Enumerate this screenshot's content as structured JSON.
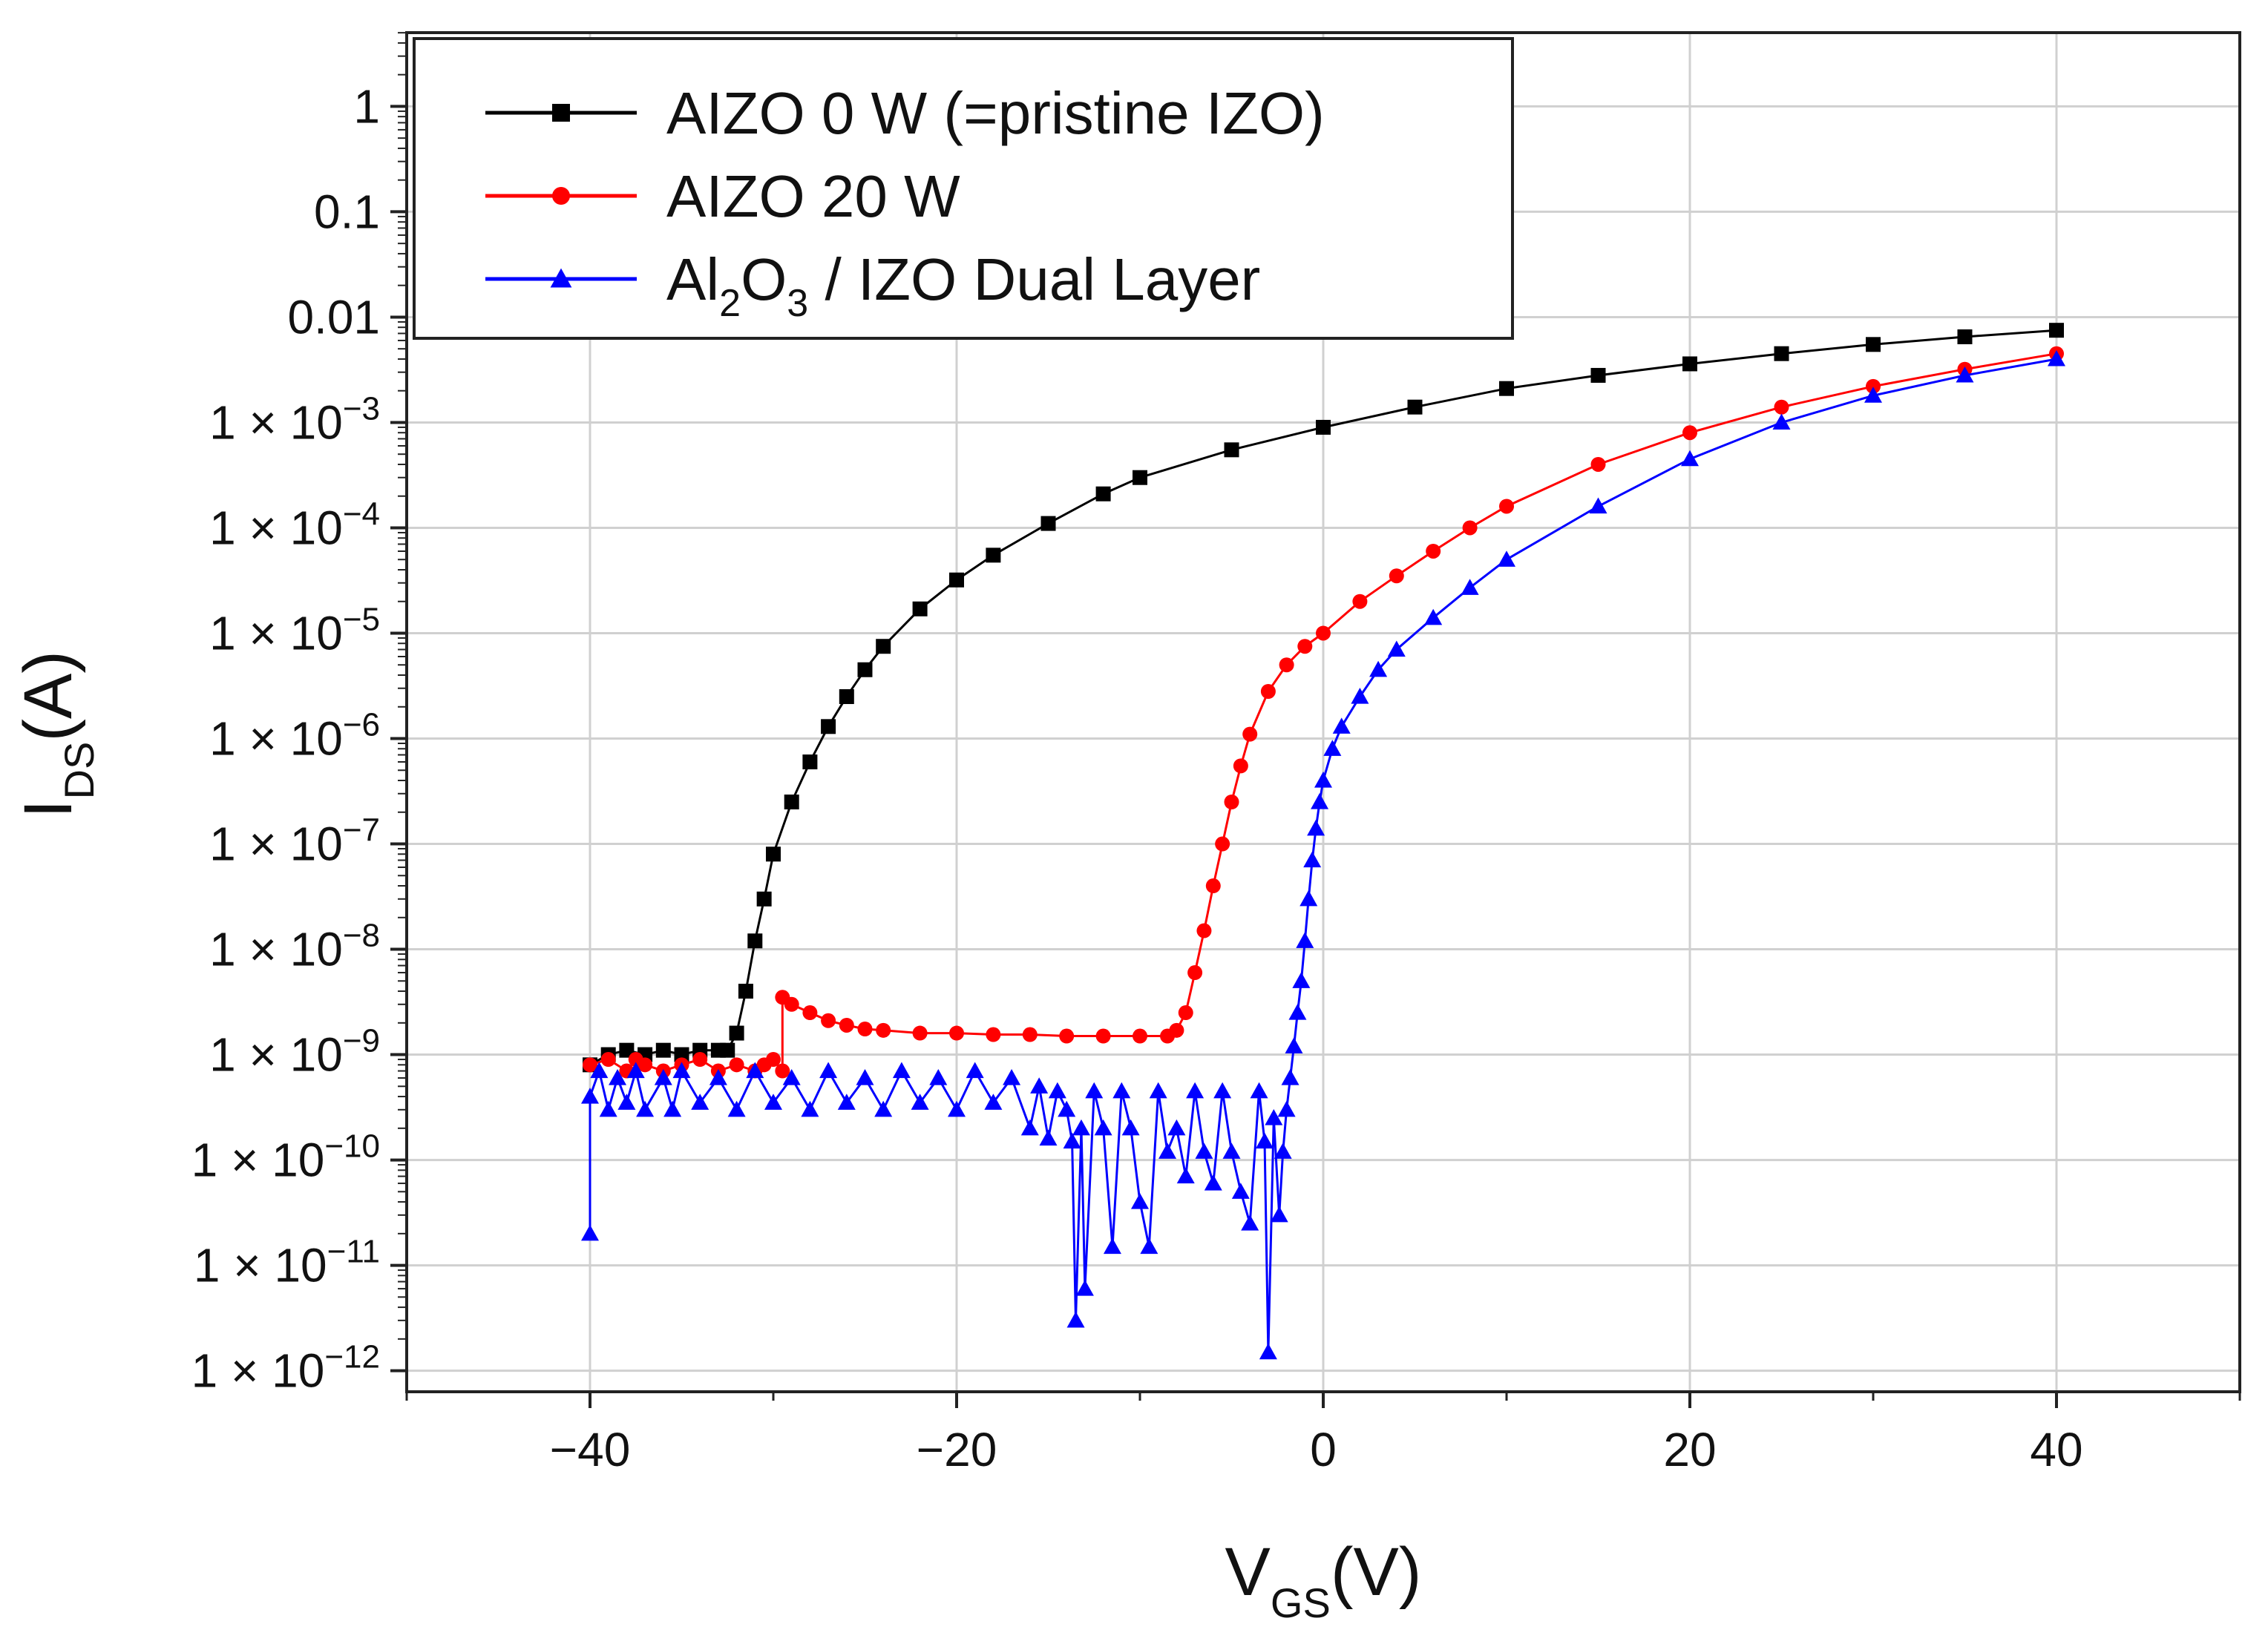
{
  "chart_data": {
    "type": "scatter",
    "title": "",
    "xlabel": "V_GS(V)",
    "ylabel": "I_DS(A)",
    "xlabel_parts": {
      "main": "V",
      "sub": "GS",
      "tail": "(V)"
    },
    "ylabel_parts": {
      "main": "I",
      "sub": "DS",
      "tail": "(A)"
    },
    "xlim": [
      -50,
      50
    ],
    "ylim_log10": [
      -12.2,
      0.7
    ],
    "yscale": "log",
    "grid": true,
    "legend_position": "top-left",
    "x_ticks": [
      {
        "value": -40,
        "label": "−40"
      },
      {
        "value": -20,
        "label": "−20"
      },
      {
        "value": 0,
        "label": "0"
      },
      {
        "value": 20,
        "label": "20"
      },
      {
        "value": 40,
        "label": "40"
      }
    ],
    "y_ticks": [
      {
        "exp": 0,
        "label": "1"
      },
      {
        "exp": -1,
        "label": "0.1"
      },
      {
        "exp": -2,
        "label": "0.01"
      },
      {
        "exp": -3,
        "base": "1 × 10",
        "power": "−3"
      },
      {
        "exp": -4,
        "base": "1 × 10",
        "power": "−4"
      },
      {
        "exp": -5,
        "base": "1 × 10",
        "power": "−5"
      },
      {
        "exp": -6,
        "base": "1 × 10",
        "power": "−6"
      },
      {
        "exp": -7,
        "base": "1 × 10",
        "power": "−7"
      },
      {
        "exp": -8,
        "base": "1 × 10",
        "power": "−8"
      },
      {
        "exp": -9,
        "base": "1 × 10",
        "power": "−9"
      },
      {
        "exp": -10,
        "base": "1 × 10",
        "power": "−10"
      },
      {
        "exp": -11,
        "base": "1 × 10",
        "power": "−11"
      },
      {
        "exp": -12,
        "base": "1 × 10",
        "power": "−12"
      }
    ],
    "series": [
      {
        "name": "AIZO 0 W (=pristine IZO)",
        "label_parts": [
          {
            "t": "AIZO 0 W (=pristine IZO)"
          }
        ],
        "color": "#000000",
        "marker": "square",
        "points": [
          [
            -40,
            8e-10
          ],
          [
            -39,
            1e-09
          ],
          [
            -38,
            1.1e-09
          ],
          [
            -37,
            1e-09
          ],
          [
            -36,
            1.1e-09
          ],
          [
            -35,
            1e-09
          ],
          [
            -34,
            1.1e-09
          ],
          [
            -33,
            1.1e-09
          ],
          [
            -32.5,
            1.1e-09
          ],
          [
            -32,
            1.6e-09
          ],
          [
            -31.5,
            4e-09
          ],
          [
            -31,
            1.2e-08
          ],
          [
            -30.5,
            3e-08
          ],
          [
            -30,
            8e-08
          ],
          [
            -29,
            2.5e-07
          ],
          [
            -28,
            6e-07
          ],
          [
            -27,
            1.3e-06
          ],
          [
            -26,
            2.5e-06
          ],
          [
            -25,
            4.5e-06
          ],
          [
            -24,
            7.5e-06
          ],
          [
            -22,
            1.7e-05
          ],
          [
            -20,
            3.2e-05
          ],
          [
            -18,
            5.5e-05
          ],
          [
            -15,
            0.00011
          ],
          [
            -12,
            0.00021
          ],
          [
            -10,
            0.0003
          ],
          [
            -5,
            0.00055
          ],
          [
            0,
            0.0009
          ],
          [
            5,
            0.0014
          ],
          [
            10,
            0.0021
          ],
          [
            15,
            0.0028
          ],
          [
            20,
            0.0036
          ],
          [
            25,
            0.0045
          ],
          [
            30,
            0.0055
          ],
          [
            35,
            0.0065
          ],
          [
            40,
            0.0075
          ]
        ]
      },
      {
        "name": "AIZO 20 W",
        "label_parts": [
          {
            "t": "AIZO 20 W"
          }
        ],
        "color": "#ff0000",
        "marker": "circle",
        "points": [
          [
            -40,
            8e-10
          ],
          [
            -39,
            9e-10
          ],
          [
            -38,
            7e-10
          ],
          [
            -37.5,
            9e-10
          ],
          [
            -37,
            8e-10
          ],
          [
            -36,
            7e-10
          ],
          [
            -35,
            8e-10
          ],
          [
            -34,
            9e-10
          ],
          [
            -33,
            7e-10
          ],
          [
            -32,
            8e-10
          ],
          [
            -31,
            7e-10
          ],
          [
            -30.5,
            8e-10
          ],
          [
            -30,
            9e-10
          ],
          [
            -29.5,
            7e-10
          ],
          [
            -29.5,
            3.5e-09
          ],
          [
            -29,
            3e-09
          ],
          [
            -28,
            2.5e-09
          ],
          [
            -27,
            2.1e-09
          ],
          [
            -26,
            1.9e-09
          ],
          [
            -25,
            1.75e-09
          ],
          [
            -24,
            1.7e-09
          ],
          [
            -22,
            1.6e-09
          ],
          [
            -20,
            1.6e-09
          ],
          [
            -18,
            1.55e-09
          ],
          [
            -16,
            1.55e-09
          ],
          [
            -14,
            1.5e-09
          ],
          [
            -12,
            1.5e-09
          ],
          [
            -10,
            1.5e-09
          ],
          [
            -8.5,
            1.5e-09
          ],
          [
            -8,
            1.7e-09
          ],
          [
            -7.5,
            2.5e-09
          ],
          [
            -7,
            6e-09
          ],
          [
            -6.5,
            1.5e-08
          ],
          [
            -6,
            4e-08
          ],
          [
            -5.5,
            1e-07
          ],
          [
            -5,
            2.5e-07
          ],
          [
            -4.5,
            5.5e-07
          ],
          [
            -4,
            1.1e-06
          ],
          [
            -3,
            2.8e-06
          ],
          [
            -2,
            5e-06
          ],
          [
            -1,
            7.5e-06
          ],
          [
            0,
            1e-05
          ],
          [
            2,
            2e-05
          ],
          [
            4,
            3.5e-05
          ],
          [
            6,
            6e-05
          ],
          [
            8,
            0.0001
          ],
          [
            10,
            0.00016
          ],
          [
            15,
            0.0004
          ],
          [
            20,
            0.0008
          ],
          [
            25,
            0.0014
          ],
          [
            30,
            0.0022
          ],
          [
            35,
            0.0032
          ],
          [
            40,
            0.0045
          ]
        ]
      },
      {
        "name": "Al2O3 / IZO Dual Layer",
        "label_parts": [
          {
            "t": "Al"
          },
          {
            "t": "2",
            "sub": true
          },
          {
            "t": "O"
          },
          {
            "t": "3",
            "sub": true
          },
          {
            "t": " / IZO Dual Layer"
          }
        ],
        "color": "#0000ff",
        "marker": "triangle",
        "points": [
          [
            -40,
            2e-11
          ],
          [
            -40,
            4e-10
          ],
          [
            -39.5,
            7e-10
          ],
          [
            -39,
            3e-10
          ],
          [
            -38.5,
            6e-10
          ],
          [
            -38,
            3.5e-10
          ],
          [
            -37.5,
            7e-10
          ],
          [
            -37,
            3e-10
          ],
          [
            -36,
            6e-10
          ],
          [
            -35.5,
            3e-10
          ],
          [
            -35,
            7e-10
          ],
          [
            -34,
            3.5e-10
          ],
          [
            -33,
            6e-10
          ],
          [
            -32,
            3e-10
          ],
          [
            -31,
            7e-10
          ],
          [
            -30,
            3.5e-10
          ],
          [
            -29,
            6e-10
          ],
          [
            -28,
            3e-10
          ],
          [
            -27,
            7e-10
          ],
          [
            -26,
            3.5e-10
          ],
          [
            -25,
            6e-10
          ],
          [
            -24,
            3e-10
          ],
          [
            -23,
            7e-10
          ],
          [
            -22,
            3.5e-10
          ],
          [
            -21,
            6e-10
          ],
          [
            -20,
            3e-10
          ],
          [
            -19,
            7e-10
          ],
          [
            -18,
            3.5e-10
          ],
          [
            -17,
            6e-10
          ],
          [
            -16,
            2e-10
          ],
          [
            -15.5,
            5e-10
          ],
          [
            -15,
            1.6e-10
          ],
          [
            -14.5,
            4.5e-10
          ],
          [
            -14,
            3e-10
          ],
          [
            -13.7,
            1.5e-10
          ],
          [
            -13.5,
            3e-12
          ],
          [
            -13.2,
            2e-10
          ],
          [
            -13,
            6e-12
          ],
          [
            -12.5,
            4.5e-10
          ],
          [
            -12,
            2e-10
          ],
          [
            -11.5,
            1.5e-11
          ],
          [
            -11,
            4.5e-10
          ],
          [
            -10.5,
            2e-10
          ],
          [
            -10,
            4e-11
          ],
          [
            -9.5,
            1.5e-11
          ],
          [
            -9,
            4.5e-10
          ],
          [
            -8.5,
            1.2e-10
          ],
          [
            -8,
            2e-10
          ],
          [
            -7.5,
            7e-11
          ],
          [
            -7,
            4.5e-10
          ],
          [
            -6.5,
            1.2e-10
          ],
          [
            -6,
            6e-11
          ],
          [
            -5.5,
            4.5e-10
          ],
          [
            -5,
            1.2e-10
          ],
          [
            -4.5,
            5e-11
          ],
          [
            -4,
            2.5e-11
          ],
          [
            -3.5,
            4.5e-10
          ],
          [
            -3.2,
            1.5e-10
          ],
          [
            -3,
            1.5e-12
          ],
          [
            -2.7,
            2.5e-10
          ],
          [
            -2.4,
            3e-11
          ],
          [
            -2.2,
            1.2e-10
          ],
          [
            -2,
            3e-10
          ],
          [
            -1.8,
            6e-10
          ],
          [
            -1.6,
            1.2e-09
          ],
          [
            -1.4,
            2.5e-09
          ],
          [
            -1.2,
            5e-09
          ],
          [
            -1,
            1.2e-08
          ],
          [
            -0.8,
            3e-08
          ],
          [
            -0.6,
            7e-08
          ],
          [
            -0.4,
            1.4e-07
          ],
          [
            -0.2,
            2.5e-07
          ],
          [
            0,
            4e-07
          ],
          [
            0.5,
            8e-07
          ],
          [
            1,
            1.3e-06
          ],
          [
            2,
            2.5e-06
          ],
          [
            3,
            4.5e-06
          ],
          [
            4,
            7e-06
          ],
          [
            6,
            1.4e-05
          ],
          [
            8,
            2.7e-05
          ],
          [
            10,
            5e-05
          ],
          [
            15,
            0.00016
          ],
          [
            20,
            0.00045
          ],
          [
            25,
            0.001
          ],
          [
            30,
            0.0018
          ],
          [
            35,
            0.0028
          ],
          [
            40,
            0.004
          ]
        ]
      }
    ]
  }
}
